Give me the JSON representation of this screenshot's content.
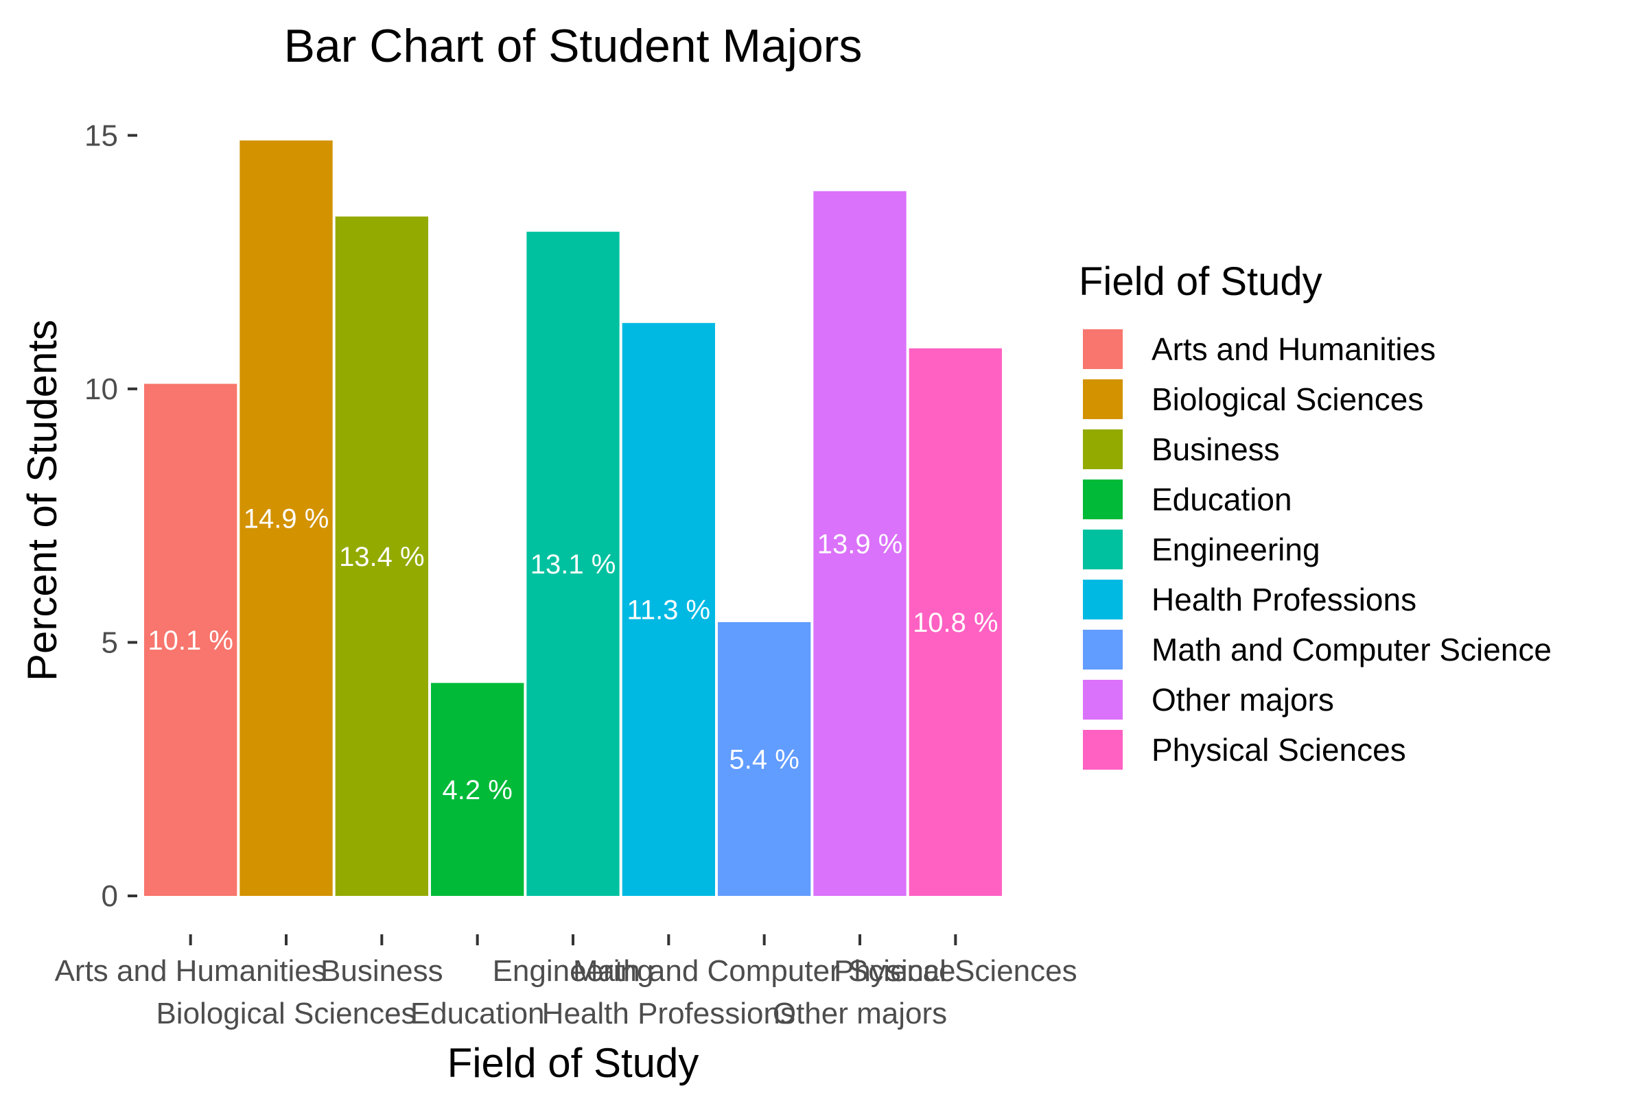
{
  "chart_data": {
    "type": "bar",
    "title": "Bar Chart of Student Majors",
    "xlabel": "Field of Study",
    "ylabel": "Percent of Students",
    "ylim": [
      0,
      15.6
    ],
    "yticks": [
      0,
      5,
      10,
      15
    ],
    "grid": false,
    "legend": {
      "title": "Field of Study",
      "position": "right"
    },
    "categories": [
      "Arts and Humanities",
      "Biological Sciences",
      "Business",
      "Education",
      "Engineering",
      "Health Professions",
      "Math and Computer Science",
      "Other majors",
      "Physical Sciences"
    ],
    "values": [
      10.1,
      14.9,
      13.4,
      4.2,
      13.1,
      11.3,
      5.4,
      13.9,
      10.8
    ],
    "data_labels": [
      "10.1 %",
      "14.9 %",
      "13.4 %",
      "4.2 %",
      "13.1 %",
      "11.3 %",
      "5.4 %",
      "13.9 %",
      "10.8 %"
    ],
    "colors": [
      "#F8766D",
      "#D39200",
      "#93AA00",
      "#00BA38",
      "#00C19F",
      "#00B9E3",
      "#619CFF",
      "#DB72FB",
      "#FF61C3"
    ]
  }
}
